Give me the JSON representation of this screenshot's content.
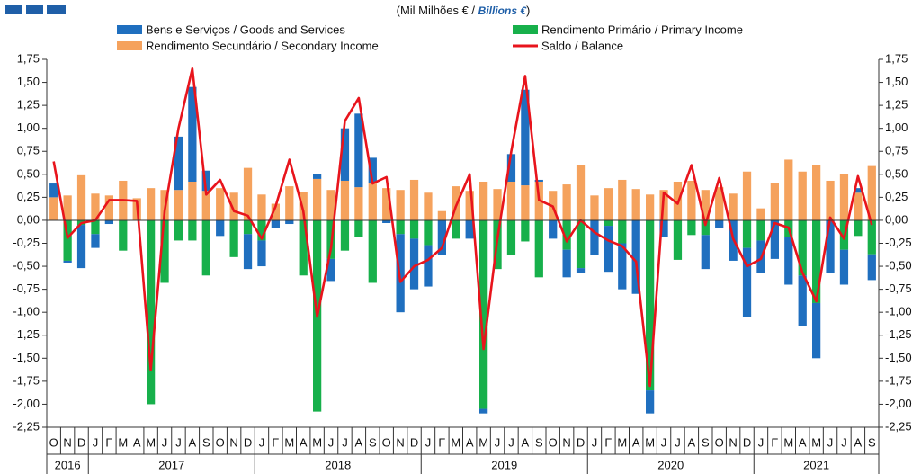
{
  "chart_data": {
    "type": "bar-line",
    "title": [
      "(Mil Milhões € / ",
      "Billions €",
      ")"
    ],
    "categories": [
      "O",
      "N",
      "D",
      "J",
      "F",
      "M",
      "A",
      "M",
      "J",
      "J",
      "A",
      "S",
      "O",
      "N",
      "D",
      "J",
      "F",
      "M",
      "A",
      "M",
      "J",
      "J",
      "A",
      "S",
      "O",
      "N",
      "D",
      "J",
      "F",
      "M",
      "A",
      "M",
      "J",
      "J",
      "A",
      "S",
      "O",
      "N",
      "D",
      "J",
      "F",
      "M",
      "A",
      "M",
      "J",
      "J",
      "A",
      "S",
      "O",
      "N",
      "D",
      "J",
      "F",
      "M",
      "A",
      "M",
      "J",
      "J",
      "A",
      "S"
    ],
    "years": [
      "2016",
      "2017",
      "2018",
      "2019",
      "2020",
      "2021"
    ],
    "series": [
      {
        "name": "Bens e Serviços / Goods and Services",
        "color": "#1f6fbf",
        "kind": "bar",
        "values": [
          0.15,
          -0.02,
          -0.47,
          -0.15,
          -0.04,
          0,
          0,
          0,
          0,
          0.58,
          1.03,
          0.22,
          -0.17,
          0,
          -0.38,
          -0.28,
          -0.08,
          -0.04,
          0,
          0.05,
          -0.24,
          0.57,
          0.8,
          0.28,
          -0.03,
          -0.85,
          -0.55,
          -0.45,
          -0.38,
          0,
          -0.2,
          -0.05,
          0,
          0.3,
          1.04,
          0.02,
          -0.2,
          -0.3,
          -0.05,
          -0.38,
          -0.5,
          -0.5,
          -0.8,
          -0.25,
          -0.18,
          0,
          0,
          -0.37,
          -0.08,
          -0.44,
          -0.75,
          -0.35,
          -0.42,
          -0.52,
          -0.55,
          -0.6,
          -0.57,
          -0.38,
          0.05,
          -0.28
        ]
      },
      {
        "name": "Rendimento Primário / Primary Income",
        "color": "#17b04b",
        "kind": "bar",
        "values": [
          0,
          -0.44,
          -0.05,
          -0.15,
          0,
          -0.33,
          0,
          -2.0,
          -0.68,
          -0.22,
          -0.22,
          -0.6,
          0,
          -0.4,
          -0.15,
          -0.22,
          0,
          0,
          -0.6,
          -2.08,
          -0.42,
          -0.33,
          -0.18,
          -0.68,
          0,
          -0.15,
          -0.2,
          -0.27,
          0,
          -0.2,
          0,
          -2.05,
          -0.53,
          -0.38,
          -0.23,
          -0.62,
          0,
          -0.32,
          -0.52,
          0,
          -0.06,
          -0.25,
          0,
          -1.85,
          0,
          -0.43,
          -0.16,
          -0.16,
          0,
          0,
          -0.3,
          -0.22,
          0,
          -0.18,
          -0.6,
          -0.9,
          0,
          -0.32,
          -0.17,
          -0.37
        ]
      },
      {
        "name": "Rendimento Secundário / Secondary Income",
        "color": "#f5a25d",
        "kind": "bar",
        "values": [
          0.25,
          0.27,
          0.49,
          0.29,
          0.27,
          0.43,
          0.24,
          0.35,
          0.33,
          0.33,
          0.42,
          0.32,
          0.35,
          0.3,
          0.57,
          0.28,
          0.18,
          0.37,
          0.31,
          0.45,
          0.33,
          0.43,
          0.36,
          0.4,
          0.35,
          0.33,
          0.44,
          0.3,
          0.1,
          0.37,
          0.32,
          0.42,
          0.34,
          0.42,
          0.38,
          0.42,
          0.32,
          0.39,
          0.6,
          0.27,
          0.35,
          0.44,
          0.34,
          0.28,
          0.33,
          0.42,
          0.43,
          0.33,
          0.36,
          0.29,
          0.53,
          0.13,
          0.41,
          0.66,
          0.53,
          0.6,
          0.43,
          0.5,
          0.3,
          0.59
        ]
      },
      {
        "name": "Saldo / Balance",
        "color": "#e8141c",
        "kind": "line",
        "values": [
          0.64,
          -0.19,
          -0.03,
          0.0,
          0.22,
          0.22,
          0.21,
          -1.63,
          0.1,
          1.0,
          1.65,
          0.28,
          0.44,
          0.1,
          0.05,
          -0.2,
          0.15,
          0.66,
          0.1,
          -1.05,
          -0.3,
          1.08,
          1.33,
          0.4,
          0.47,
          -0.67,
          -0.5,
          -0.43,
          -0.3,
          0.15,
          0.5,
          -1.4,
          -0.2,
          0.75,
          1.57,
          0.22,
          0.15,
          -0.23,
          0.0,
          -0.13,
          -0.22,
          -0.28,
          -0.45,
          -1.8,
          0.3,
          0.18,
          0.6,
          -0.05,
          0.46,
          -0.2,
          -0.5,
          -0.42,
          -0.03,
          -0.08,
          -0.57,
          -0.88,
          0.03,
          -0.2,
          0.48,
          -0.05
        ]
      }
    ],
    "ylim": [
      -2.25,
      1.75
    ],
    "yticks": [
      {
        "value": 1.75,
        "label": "1,75"
      },
      {
        "value": 1.5,
        "label": "1,50"
      },
      {
        "value": 1.25,
        "label": "1,25"
      },
      {
        "value": 1,
        "label": "1,00"
      },
      {
        "value": 0.75,
        "label": "0,75"
      },
      {
        "value": 0.5,
        "label": "0,50"
      },
      {
        "value": 0.25,
        "label": "0,25"
      },
      {
        "value": 0,
        "label": "0,00"
      },
      {
        "value": -0.25,
        "label": "-0,25"
      },
      {
        "value": -0.5,
        "label": "-0,50"
      },
      {
        "value": -0.75,
        "label": "-0,75"
      },
      {
        "value": -1,
        "label": "-1,00"
      },
      {
        "value": -1.25,
        "label": "-1,25"
      },
      {
        "value": -1.5,
        "label": "-1,50"
      },
      {
        "value": -1.75,
        "label": "-1,75"
      },
      {
        "value": -2,
        "label": "-2,00"
      },
      {
        "value": -2.25,
        "label": "-2,25"
      }
    ],
    "y2lim": [
      -2.25,
      1.75
    ],
    "y2ticks": [
      {
        "value": 1.75,
        "label": "1,75"
      },
      {
        "value": 1.5,
        "label": "1,50"
      },
      {
        "value": 1.25,
        "label": "1,25"
      },
      {
        "value": 1,
        "label": "1,00"
      },
      {
        "value": 0.75,
        "label": "0,75"
      },
      {
        "value": 0.5,
        "label": "0,50"
      },
      {
        "value": 0.25,
        "label": "0,25"
      },
      {
        "value": 0,
        "label": "0,00"
      },
      {
        "value": -0.25,
        "label": "-0,25"
      },
      {
        "value": -0.5,
        "label": "-0,50"
      },
      {
        "value": -0.75,
        "label": "-0,75"
      },
      {
        "value": -1,
        "label": "-1,00"
      },
      {
        "value": -1.25,
        "label": "-1,25"
      },
      {
        "value": -1.5,
        "label": "-1,50"
      },
      {
        "value": -1.75,
        "label": "-1,75"
      },
      {
        "value": -2,
        "label": "-2,00"
      },
      {
        "value": -2.25,
        "label": "-2,25"
      }
    ],
    "grid": false
  }
}
